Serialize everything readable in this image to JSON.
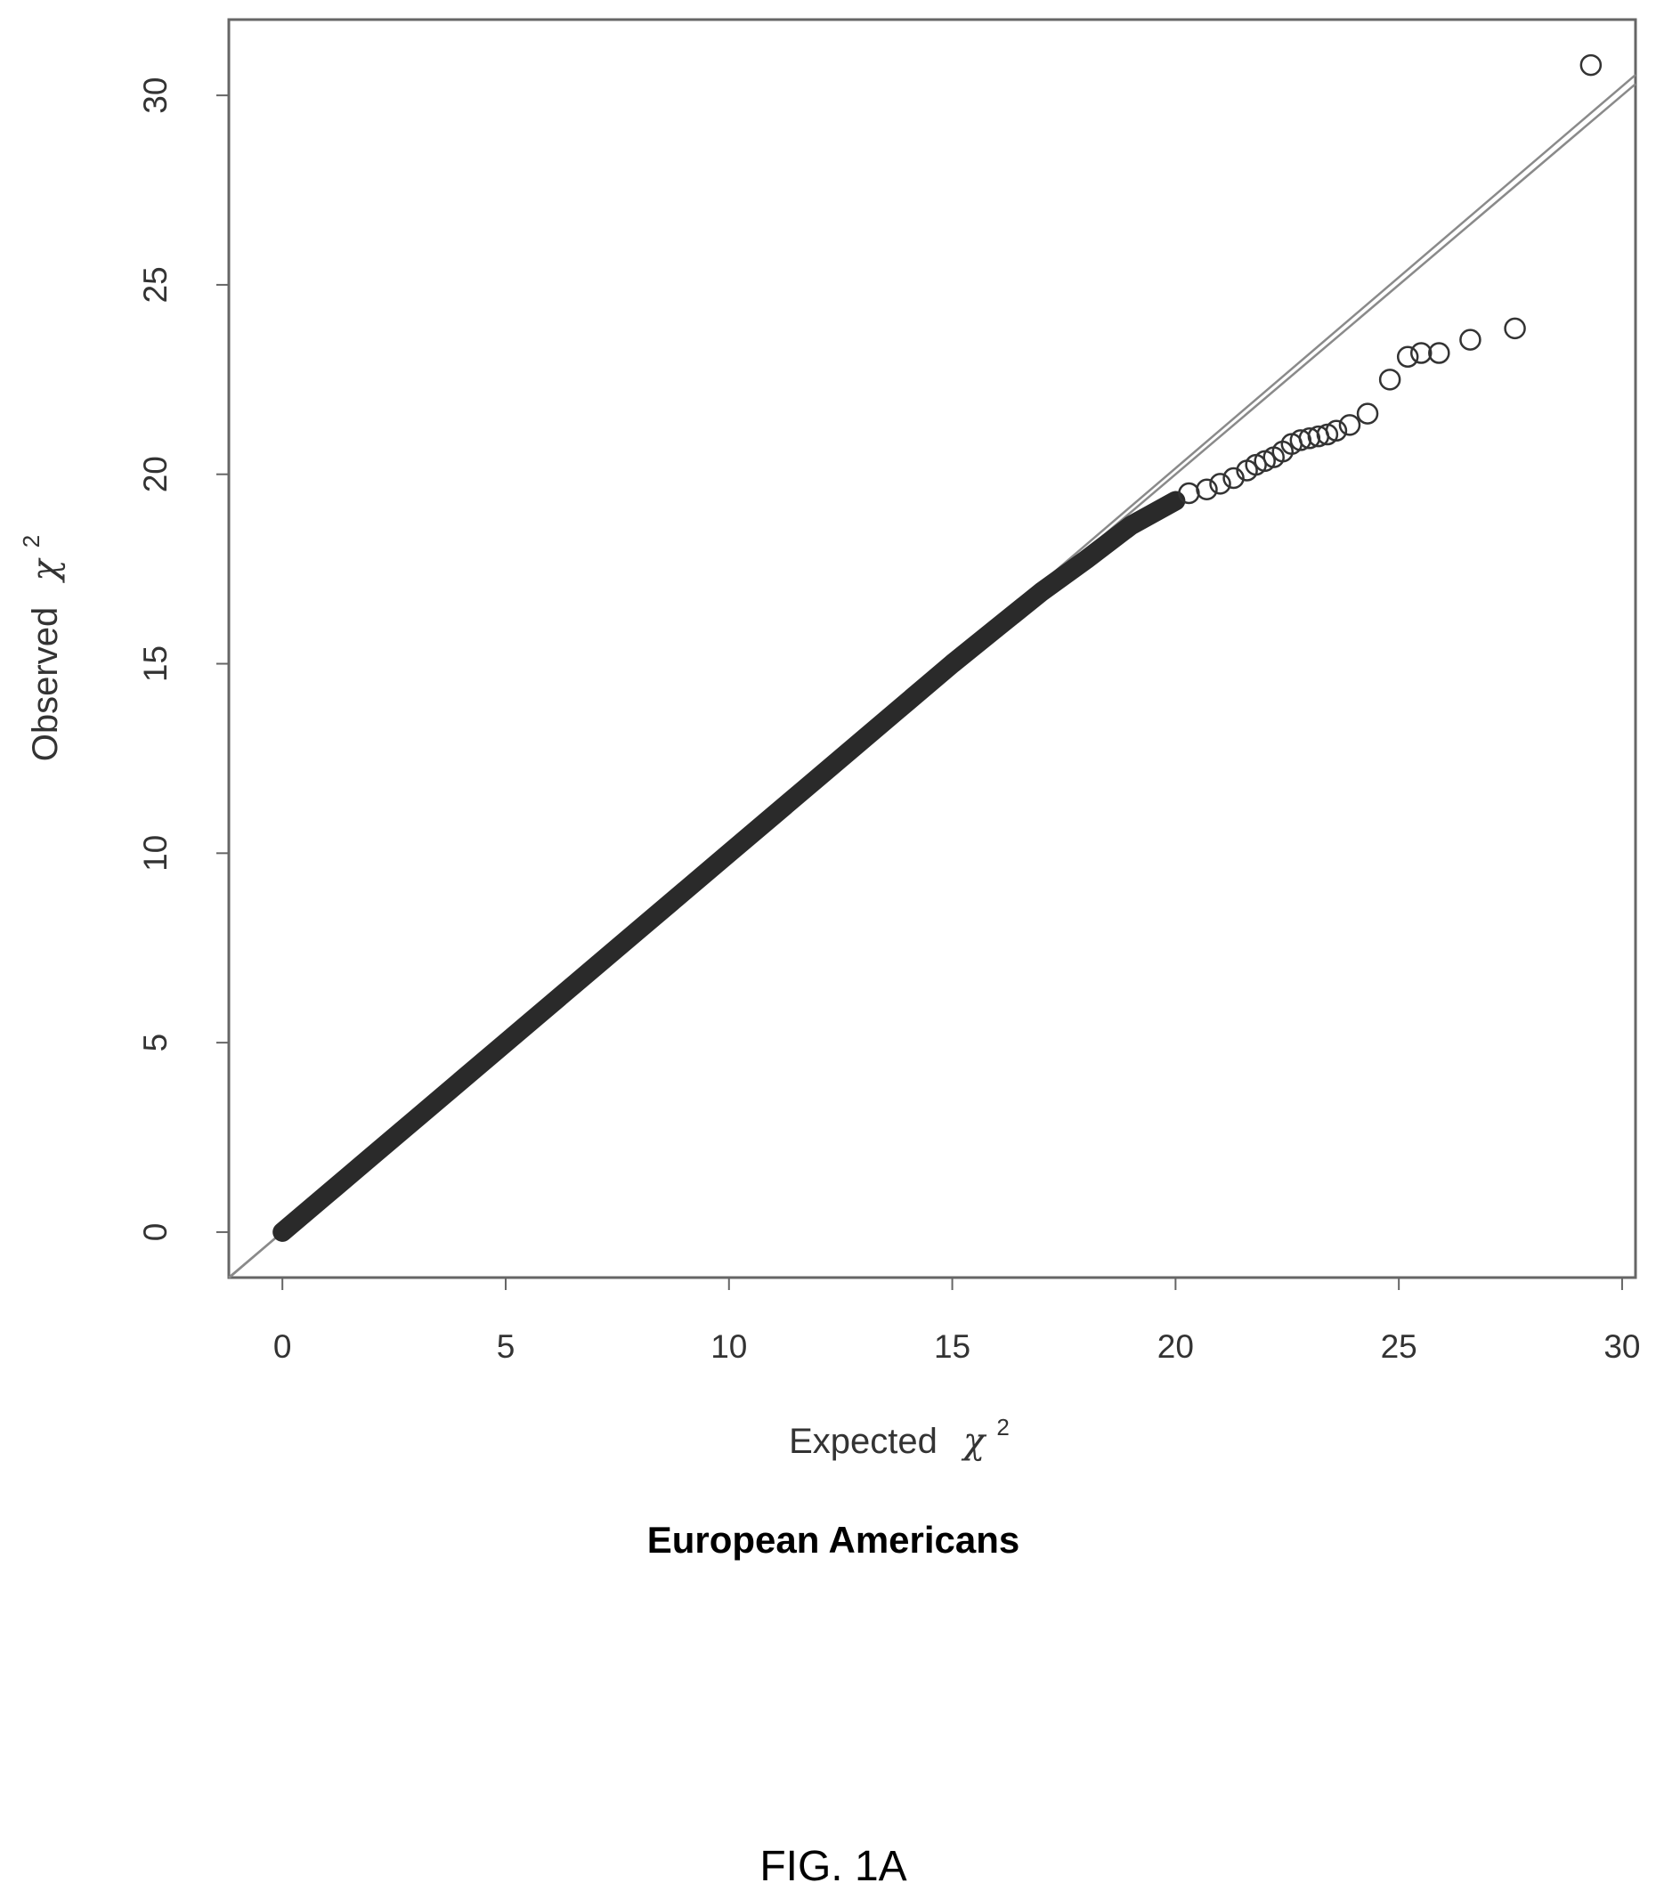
{
  "chart_data": {
    "type": "scatter",
    "title": "",
    "subtitle": "European Americans",
    "caption": "FIG. 1A",
    "xlabel": {
      "text": "Expected",
      "symbol": "χ",
      "superscript": "2"
    },
    "ylabel": {
      "text": "Observed",
      "symbol": "χ",
      "superscript": "2"
    },
    "xlim": [
      -1.2,
      30.3
    ],
    "ylim": [
      -1.2,
      32.0
    ],
    "xticks": [
      {
        "value": 0,
        "label": "0"
      },
      {
        "value": 5,
        "label": "5"
      },
      {
        "value": 10,
        "label": "10"
      },
      {
        "value": 15,
        "label": "15"
      },
      {
        "value": 20,
        "label": "20"
      },
      {
        "value": 25,
        "label": "25"
      },
      {
        "value": 30,
        "label": "30"
      }
    ],
    "yticks": [
      {
        "value": 0,
        "label": "0"
      },
      {
        "value": 5,
        "label": "5"
      },
      {
        "value": 10,
        "label": "10"
      },
      {
        "value": 15,
        "label": "15"
      },
      {
        "value": 20,
        "label": "20"
      },
      {
        "value": 25,
        "label": "25"
      },
      {
        "value": 30,
        "label": "30"
      }
    ],
    "grid": false,
    "reference_lines": [
      {
        "slope": 1.0,
        "intercept": 0
      },
      {
        "slope": 1.008,
        "intercept": 0
      }
    ],
    "series": [
      {
        "marker": "open-circle",
        "dense_trace": [
          [
            0,
            0
          ],
          [
            1,
            1
          ],
          [
            2,
            2
          ],
          [
            3,
            3
          ],
          [
            4,
            4
          ],
          [
            5,
            5
          ],
          [
            6,
            6
          ],
          [
            7,
            7
          ],
          [
            8,
            8
          ],
          [
            9,
            9
          ],
          [
            10,
            10
          ],
          [
            11,
            11
          ],
          [
            12,
            12
          ],
          [
            13,
            13
          ],
          [
            14,
            14
          ],
          [
            15,
            15
          ],
          [
            16,
            15.95
          ],
          [
            17,
            16.9
          ],
          [
            18,
            17.75
          ],
          [
            19,
            18.65
          ],
          [
            20,
            19.3
          ]
        ],
        "points": [
          [
            20.3,
            19.5
          ],
          [
            20.7,
            19.6
          ],
          [
            21.0,
            19.75
          ],
          [
            21.3,
            19.9
          ],
          [
            21.6,
            20.1
          ],
          [
            21.8,
            20.25
          ],
          [
            22.0,
            20.35
          ],
          [
            22.2,
            20.45
          ],
          [
            22.4,
            20.6
          ],
          [
            22.6,
            20.8
          ],
          [
            22.8,
            20.9
          ],
          [
            23.0,
            20.95
          ],
          [
            23.2,
            21.0
          ],
          [
            23.4,
            21.05
          ],
          [
            23.6,
            21.15
          ],
          [
            23.9,
            21.3
          ],
          [
            24.3,
            21.6
          ],
          [
            24.8,
            22.5
          ],
          [
            25.2,
            23.1
          ],
          [
            25.5,
            23.2
          ],
          [
            25.9,
            23.2
          ],
          [
            26.6,
            23.55
          ],
          [
            27.6,
            23.85
          ],
          [
            29.3,
            30.8
          ]
        ]
      }
    ]
  }
}
